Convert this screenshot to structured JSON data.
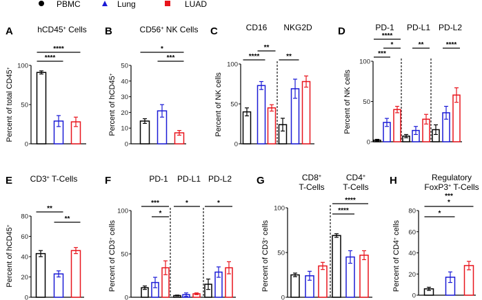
{
  "legend": [
    {
      "label": "PBMC",
      "marker": "circle",
      "color": "#000000"
    },
    {
      "label": "Lung",
      "marker": "triangle",
      "color": "#1a1ad6"
    },
    {
      "label": "LUAD",
      "marker": "square",
      "color": "#e8141c"
    }
  ],
  "chart_data": [
    {
      "panel": "A",
      "type": "bar",
      "title": [
        {
          "t": "hCD45"
        },
        {
          "t": "+",
          "sup": true
        },
        {
          "t": " Cells"
        }
      ],
      "ylabel": [
        {
          "t": "Percent of total CD45"
        },
        {
          "t": "+",
          "sup": true
        }
      ],
      "ylim": [
        0,
        100
      ],
      "yticks": [
        0,
        50,
        100
      ],
      "groups": [
        {
          "label": "",
          "means": [
            91,
            29,
            28
          ],
          "sem": [
            2,
            7,
            6
          ]
        }
      ],
      "significance": [
        {
          "from": 0,
          "to": 1,
          "label": "****",
          "tier": 1
        },
        {
          "from": 0,
          "to": 2,
          "label": "****",
          "tier": 2
        }
      ]
    },
    {
      "panel": "B",
      "type": "bar",
      "title": [
        {
          "t": "CD56"
        },
        {
          "t": "+",
          "sup": true
        },
        {
          "t": " NK Cells"
        }
      ],
      "ylabel": [
        {
          "t": "Percent of hCD45"
        },
        {
          "t": "+",
          "sup": true
        }
      ],
      "ylim": [
        0,
        50
      ],
      "yticks": [
        0,
        10,
        20,
        30,
        40,
        50
      ],
      "groups": [
        {
          "label": "",
          "means": [
            14.5,
            21,
            7
          ],
          "sem": [
            1.5,
            4,
            1.5
          ]
        }
      ],
      "significance": [
        {
          "from": 1,
          "to": 2,
          "label": "***",
          "tier": 1
        },
        {
          "from": 0,
          "to": 2,
          "label": "*",
          "tier": 2
        }
      ]
    },
    {
      "panel": "C",
      "type": "bar",
      "title": [],
      "ylabel": [
        {
          "t": "Percent of  NK cells"
        }
      ],
      "ylim": [
        0,
        100
      ],
      "yticks": [
        0,
        50,
        100
      ],
      "groups": [
        {
          "label": "CD16",
          "means": [
            40,
            73,
            45
          ],
          "sem": [
            5,
            5,
            4
          ]
        },
        {
          "label": "NKG2D",
          "means": [
            24,
            69,
            78
          ],
          "sem": [
            8,
            12,
            7
          ]
        }
      ],
      "significance": [
        {
          "from": 0,
          "to": 1,
          "label": "****",
          "tier": 1
        },
        {
          "from": 1,
          "to": 2,
          "label": "**",
          "tier": 2
        },
        {
          "from": 3,
          "to": 4,
          "label": "**",
          "tier": 1
        }
      ]
    },
    {
      "panel": "D",
      "type": "bar",
      "title": [],
      "ylabel": [
        {
          "t": "Percent of  NK cells"
        }
      ],
      "ylim": [
        0,
        100
      ],
      "yticks": [
        0,
        50,
        100
      ],
      "groups": [
        {
          "label": "PD-1",
          "means": [
            2,
            24,
            40
          ],
          "sem": [
            1,
            5,
            4
          ]
        },
        {
          "label": "PD-L1",
          "means": [
            7,
            14,
            28
          ],
          "sem": [
            2,
            5,
            6
          ]
        },
        {
          "label": "PD-L2",
          "means": [
            15,
            36,
            58
          ],
          "sem": [
            6,
            8,
            9
          ]
        }
      ],
      "significance": [
        {
          "from": 0,
          "to": 1,
          "label": "***",
          "tier": 1
        },
        {
          "from": 1,
          "to": 2,
          "label": "*",
          "tier": 2
        },
        {
          "from": 0,
          "to": 2,
          "label": "****",
          "tier": 3
        },
        {
          "from": 4,
          "to": 5,
          "label": "**",
          "tier": 2
        },
        {
          "from": 7,
          "to": 8,
          "label": "****",
          "tier": 2
        }
      ]
    },
    {
      "panel": "E",
      "type": "bar",
      "title": [
        {
          "t": "CD3"
        },
        {
          "t": "+",
          "sup": true
        },
        {
          "t": " T-Cells"
        }
      ],
      "ylabel": [
        {
          "t": "Percent of hCD45"
        },
        {
          "t": "+",
          "sup": true
        }
      ],
      "ylim": [
        0,
        80
      ],
      "yticks": [
        0,
        20,
        40,
        60,
        80
      ],
      "groups": [
        {
          "label": "",
          "means": [
            43,
            23,
            46
          ],
          "sem": [
            3,
            3,
            3
          ]
        }
      ],
      "significance": [
        {
          "from": 0,
          "to": 1,
          "label": "**",
          "tier": 1
        },
        {
          "from": 1,
          "to": 2,
          "label": "**",
          "tier": 0
        }
      ]
    },
    {
      "panel": "F",
      "type": "bar",
      "title": [],
      "ylabel": [
        {
          "t": "Percent of  CD3"
        },
        {
          "t": "+",
          "sup": true
        },
        {
          "t": " cells"
        }
      ],
      "ylim": [
        0,
        100
      ],
      "yticks": [
        0,
        50,
        100
      ],
      "groups": [
        {
          "label": "PD-1",
          "means": [
            11,
            17,
            34
          ],
          "sem": [
            2,
            6,
            8
          ]
        },
        {
          "label": "PD-L1",
          "means": [
            2,
            3,
            4
          ],
          "sem": [
            0.5,
            2,
            1
          ]
        },
        {
          "label": "PD-L2",
          "means": [
            15,
            29,
            34
          ],
          "sem": [
            6,
            6,
            7
          ]
        }
      ],
      "significance": [
        {
          "from": 1,
          "to": 2,
          "label": "*",
          "tier": 0
        },
        {
          "from": 0,
          "to": 2,
          "label": "***",
          "tier": 1
        },
        {
          "from": 3,
          "to": 5,
          "label": "*",
          "tier": 1
        },
        {
          "from": 6,
          "to": 8,
          "label": "*",
          "tier": 1
        }
      ]
    },
    {
      "panel": "G",
      "type": "bar",
      "title": [],
      "ylabel": [
        {
          "t": "Percent of  CD3"
        },
        {
          "t": "+",
          "sup": true
        },
        {
          "t": " cells"
        }
      ],
      "ylim": [
        0,
        100
      ],
      "yticks": [
        0,
        50,
        100
      ],
      "groups": [
        {
          "label": [
            {
              "t": "CD8"
            },
            {
              "t": "+",
              "sup": true
            }
          ],
          "label2": "T-Cells",
          "means": [
            25,
            24,
            35
          ],
          "sem": [
            2,
            5,
            4
          ]
        },
        {
          "label": [
            {
              "t": "CD4"
            },
            {
              "t": "+",
              "sup": true
            }
          ],
          "label2": "T-Cells",
          "means": [
            69,
            45,
            47
          ],
          "sem": [
            2,
            7,
            5
          ]
        }
      ],
      "significance": [
        {
          "from": 3,
          "to": 4,
          "label": "****",
          "tier": 0
        },
        {
          "from": 3,
          "to": 5,
          "label": "****",
          "tier": 1
        }
      ]
    },
    {
      "panel": "H",
      "type": "bar",
      "title": [],
      "ylabel": [
        {
          "t": "Percent of  CD4"
        },
        {
          "t": "+",
          "sup": true
        },
        {
          "t": " cells"
        }
      ],
      "ylim": [
        0,
        80
      ],
      "yticks": [
        0,
        20,
        40,
        60,
        80
      ],
      "groups": [
        {
          "label": [
            {
              "t": "Regulatory"
            }
          ],
          "label2": [
            {
              "t": "FoxP3"
            },
            {
              "t": "+",
              "sup": true
            },
            {
              "t": " T-Cells"
            }
          ],
          "means": [
            6,
            17,
            28
          ],
          "sem": [
            1.5,
            5,
            4
          ]
        }
      ],
      "significance": [
        {
          "from": 0,
          "to": 1,
          "label": "*",
          "tier": 0
        },
        {
          "from": 0,
          "to": 2,
          "label": "***",
          "label2": "*",
          "tier": 1
        }
      ]
    }
  ]
}
